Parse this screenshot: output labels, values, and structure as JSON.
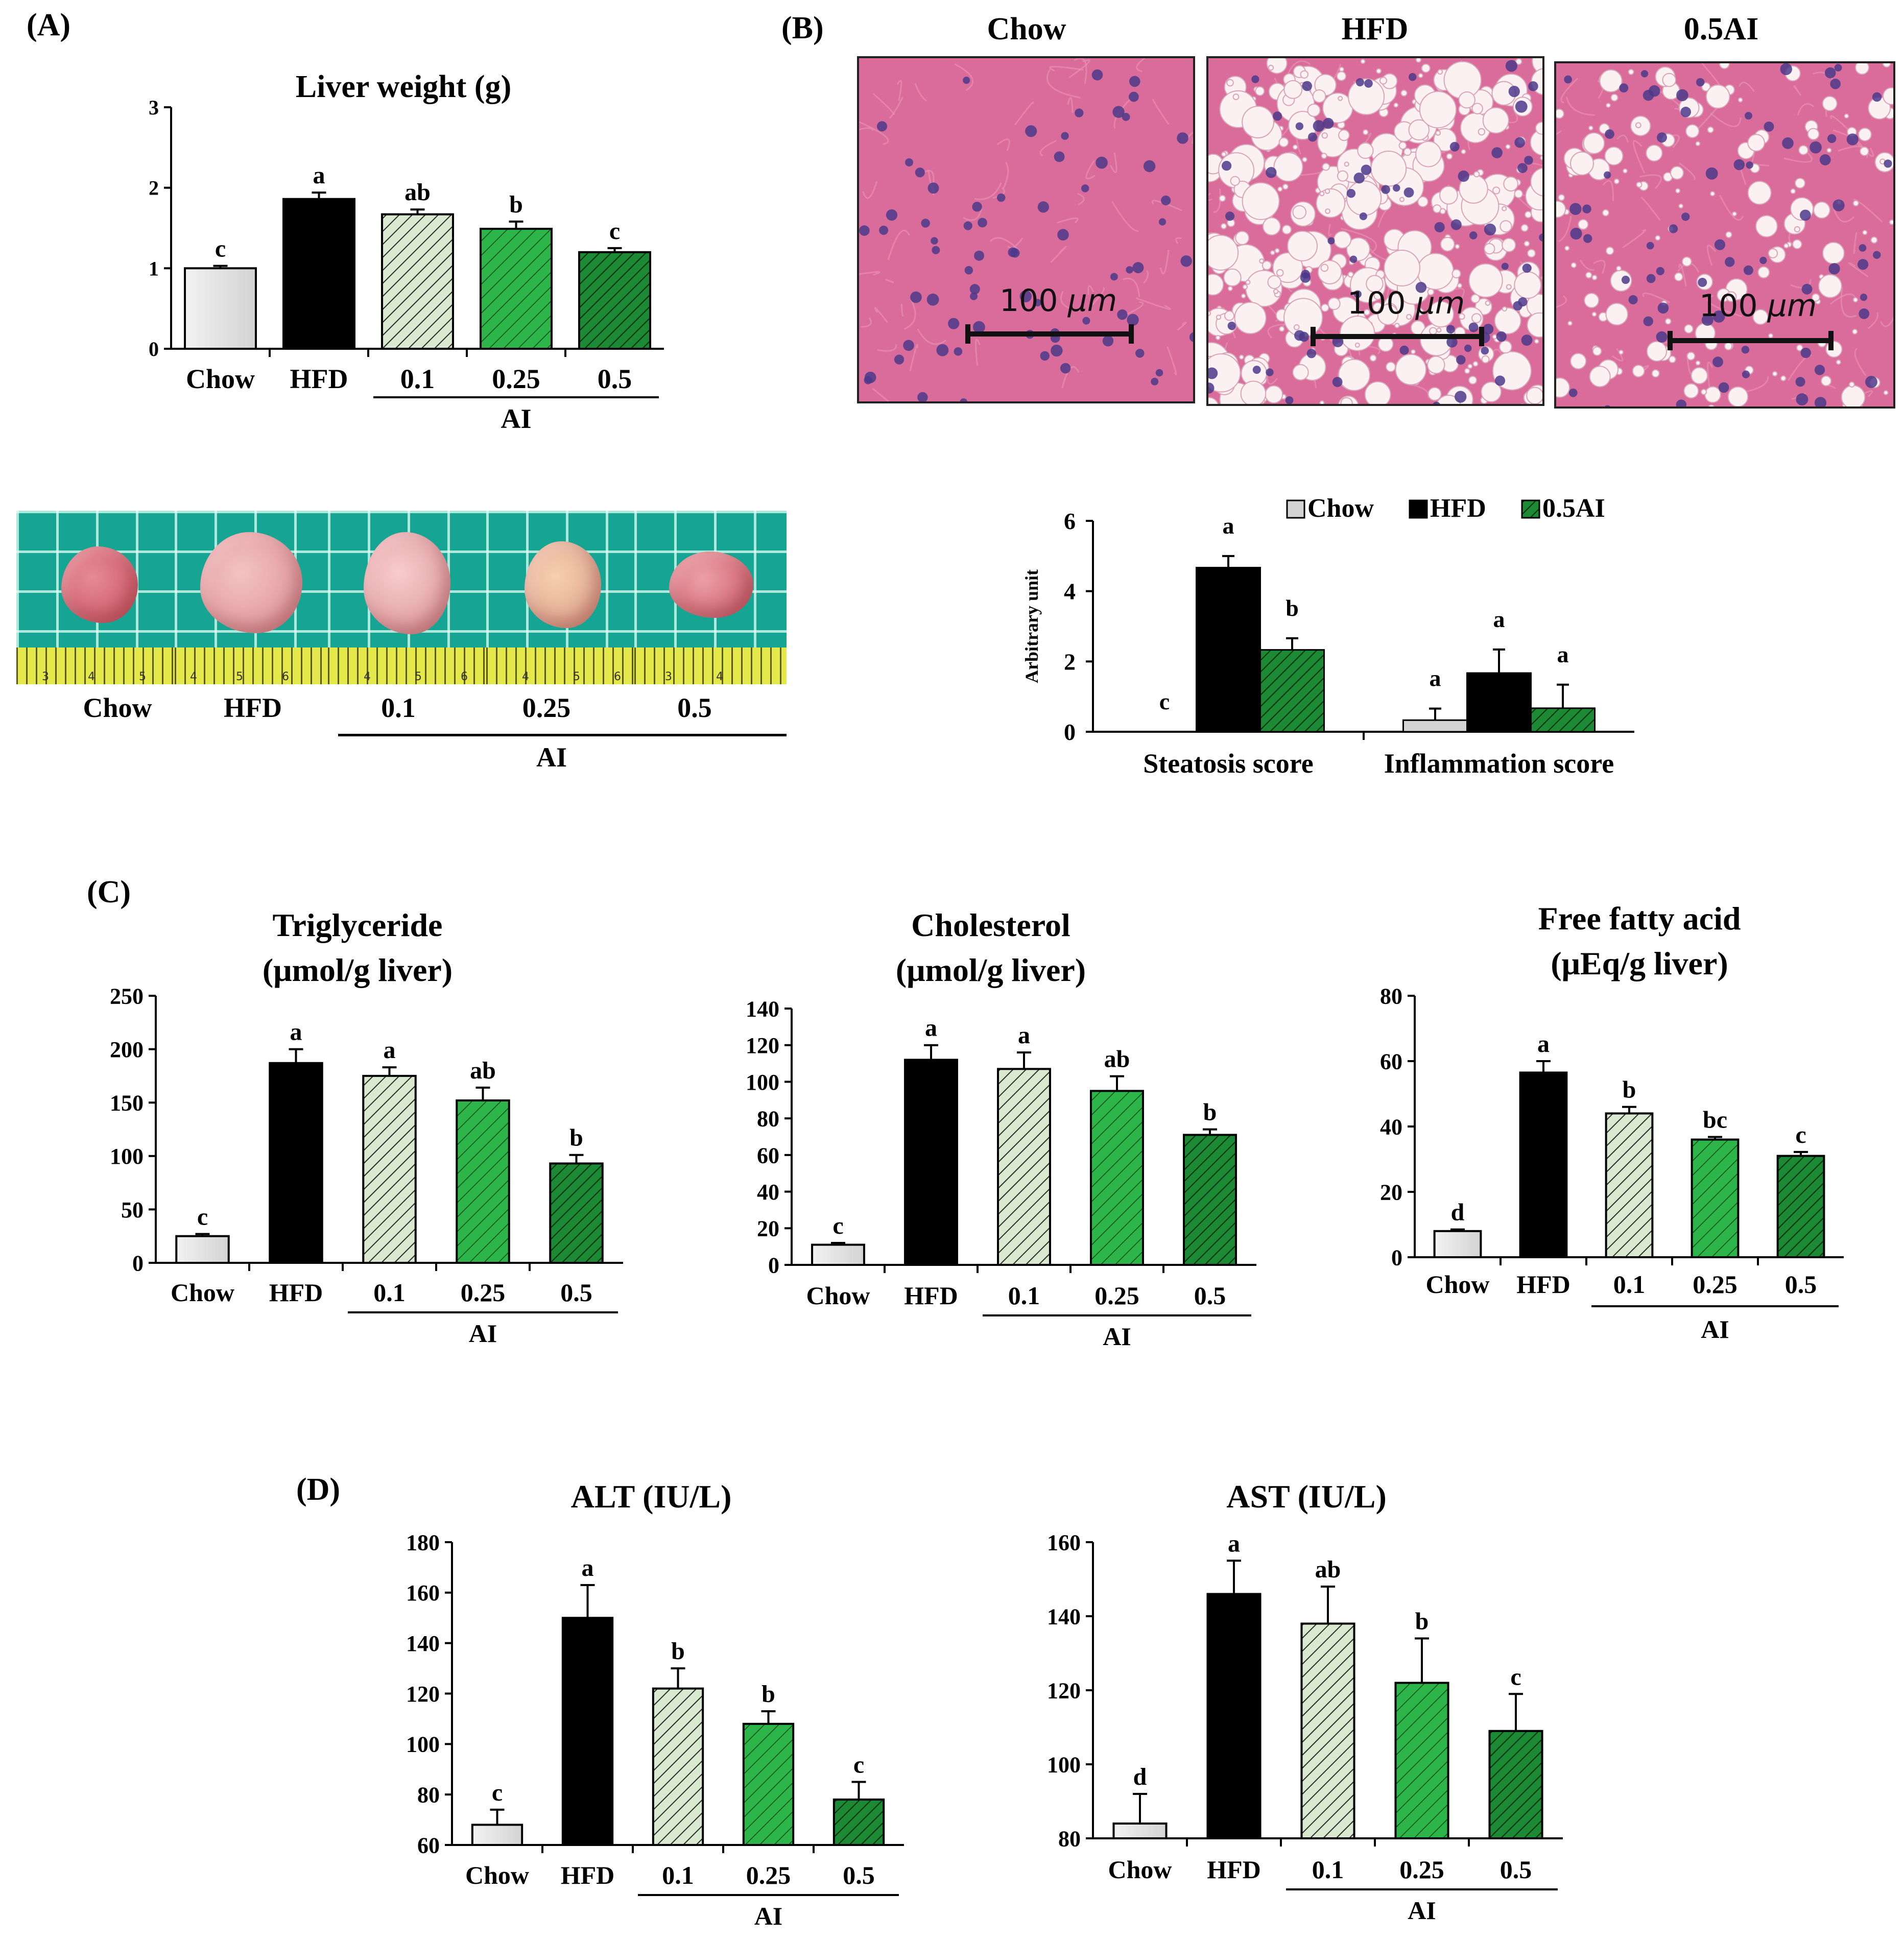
{
  "panels": {
    "A": "(A)",
    "B": "(B)",
    "C": "(C)",
    "D": "(D)"
  },
  "colors": {
    "chow": "#d3d3d3",
    "hfd": "#000000",
    "ai01": "#d8e9d0",
    "ai025": "#2db54a",
    "ai05": "#1c8a34",
    "he_pink": "#d96c9a",
    "he_nucleus": "#4b3a8a"
  },
  "group_labels": [
    "Chow",
    "HFD",
    "0.1",
    "0.25",
    "0.5"
  ],
  "ai_label": "AI",
  "histology": {
    "titles": [
      "Chow",
      "HFD",
      "0.5AI"
    ],
    "scale_value": "100",
    "scale_unit": "μm"
  },
  "photo": {
    "labels": [
      "Chow",
      "HFD",
      "0.1",
      "0.25",
      "0.5"
    ],
    "ai_label": "AI"
  },
  "chart_data": [
    {
      "id": "liver_weight",
      "type": "bar",
      "title": "Liver weight (g)",
      "categories": [
        "Chow",
        "HFD",
        "0.1",
        "0.25",
        "0.5"
      ],
      "values": [
        1.0,
        1.86,
        1.67,
        1.49,
        1.2
      ],
      "errors": [
        0.03,
        0.08,
        0.06,
        0.09,
        0.05
      ],
      "letters": [
        "c",
        "a",
        "ab",
        "b",
        "c"
      ],
      "ylim": [
        0,
        3
      ],
      "yticks": [
        0,
        1,
        2,
        3
      ],
      "group_label": "AI"
    },
    {
      "id": "histology_scores",
      "type": "bar",
      "ylabel": "Arbitrary unit",
      "categories": [
        "Steatosis score",
        "Inflammation score"
      ],
      "series": [
        {
          "name": "Chow",
          "values": [
            0,
            0.33
          ],
          "errors": [
            0,
            0.33
          ],
          "letters": [
            "c",
            "a"
          ]
        },
        {
          "name": "HFD",
          "values": [
            4.67,
            1.67
          ],
          "errors": [
            0.33,
            0.67
          ],
          "letters": [
            "a",
            "a"
          ]
        },
        {
          "name": "0.5AI",
          "values": [
            2.33,
            0.67
          ],
          "errors": [
            0.33,
            0.67
          ],
          "letters": [
            "b",
            "a"
          ]
        }
      ],
      "ylim": [
        0,
        6
      ],
      "yticks": [
        0,
        2,
        4,
        6
      ],
      "legend": "top"
    },
    {
      "id": "triglyceride",
      "type": "bar",
      "title": [
        "Triglyceride",
        "(μmol/g liver)"
      ],
      "categories": [
        "Chow",
        "HFD",
        "0.1",
        "0.25",
        "0.5"
      ],
      "values": [
        25,
        187,
        175,
        152,
        93
      ],
      "errors": [
        2,
        13,
        8,
        12,
        8
      ],
      "letters": [
        "c",
        "a",
        "a",
        "ab",
        "b"
      ],
      "ylim": [
        0,
        250
      ],
      "yticks": [
        0,
        50,
        100,
        150,
        200,
        250
      ],
      "group_label": "AI"
    },
    {
      "id": "cholesterol",
      "type": "bar",
      "title": [
        "Cholesterol",
        "(μmol/g liver)"
      ],
      "categories": [
        "Chow",
        "HFD",
        "0.1",
        "0.25",
        "0.5"
      ],
      "values": [
        11,
        112,
        107,
        95,
        71
      ],
      "errors": [
        1,
        8,
        9,
        8,
        3
      ],
      "letters": [
        "c",
        "a",
        "a",
        "ab",
        "b"
      ],
      "ylim": [
        0,
        140
      ],
      "yticks": [
        0,
        20,
        40,
        60,
        80,
        100,
        120,
        140
      ],
      "group_label": "AI"
    },
    {
      "id": "free_fatty_acid",
      "type": "bar",
      "title": [
        "Free fatty acid",
        "(μEq/g liver)"
      ],
      "categories": [
        "Chow",
        "HFD",
        "0.1",
        "0.25",
        "0.5"
      ],
      "values": [
        8,
        56.5,
        44,
        36,
        31
      ],
      "errors": [
        0.5,
        3.5,
        2,
        0.8,
        1.2
      ],
      "letters": [
        "d",
        "a",
        "b",
        "bc",
        "c"
      ],
      "ylim": [
        0,
        80
      ],
      "yticks": [
        0,
        20,
        40,
        60,
        80
      ],
      "group_label": "AI"
    },
    {
      "id": "alt",
      "type": "bar",
      "title": "ALT (IU/L)",
      "categories": [
        "Chow",
        "HFD",
        "0.1",
        "0.25",
        "0.5"
      ],
      "values": [
        68,
        150,
        122,
        108,
        78
      ],
      "errors": [
        6,
        13,
        8,
        5,
        7
      ],
      "letters": [
        "c",
        "a",
        "b",
        "b",
        "c"
      ],
      "ylim": [
        60,
        180
      ],
      "yticks": [
        60,
        80,
        100,
        120,
        140,
        160,
        180
      ],
      "group_label": "AI"
    },
    {
      "id": "ast",
      "type": "bar",
      "title": "AST (IU/L)",
      "categories": [
        "Chow",
        "HFD",
        "0.1",
        "0.25",
        "0.5"
      ],
      "values": [
        84,
        146,
        138,
        122,
        109
      ],
      "errors": [
        8,
        9,
        10,
        12,
        10
      ],
      "letters": [
        "d",
        "a",
        "ab",
        "b",
        "c"
      ],
      "ylim": [
        80,
        160
      ],
      "yticks": [
        80,
        100,
        120,
        140,
        160
      ],
      "group_label": "AI"
    }
  ]
}
